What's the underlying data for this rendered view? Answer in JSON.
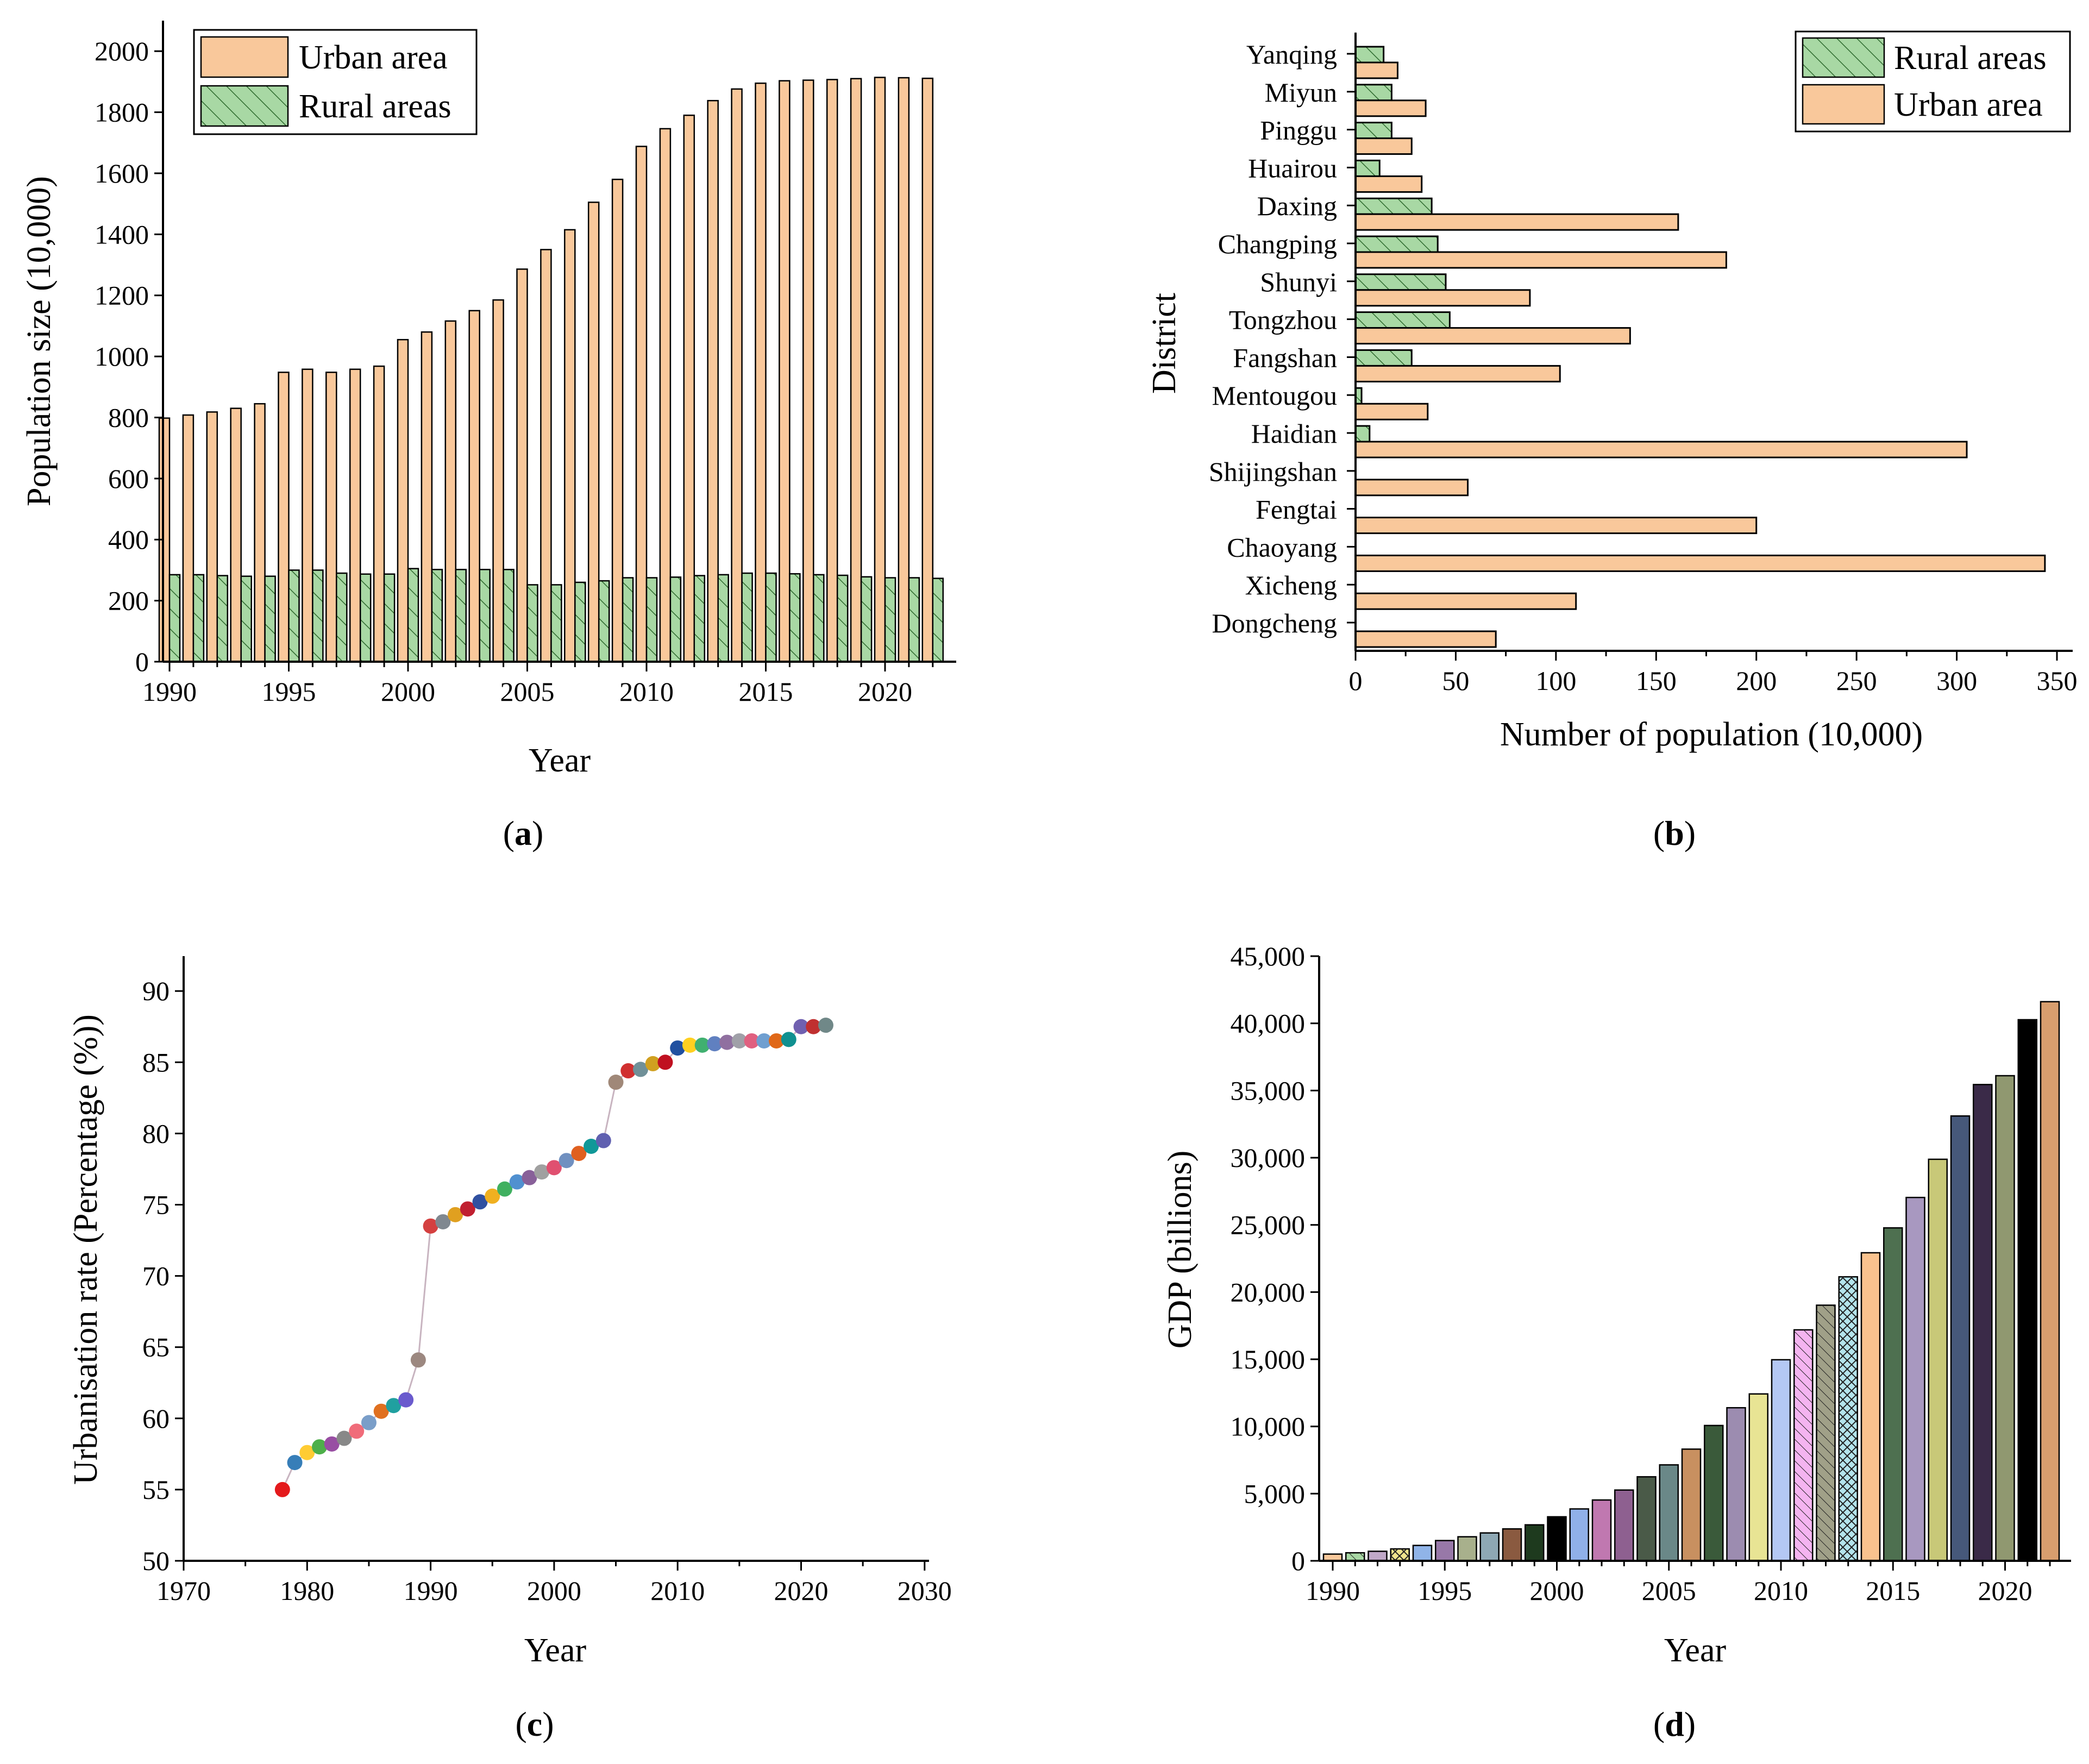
{
  "colors": {
    "urban": "#f9c89b",
    "rural": "#a8d8a4",
    "rural_hatch": "#2f6b2f",
    "line": "#c8b4c0"
  },
  "captions": {
    "a": "a",
    "b": "b",
    "c": "c",
    "d": "d"
  },
  "chart_data": [
    {
      "id": "a",
      "type": "bar",
      "title": "",
      "xlabel": "Year",
      "ylabel": "Population size (10,000)",
      "x": [
        1990,
        1991,
        1992,
        1993,
        1994,
        1995,
        1996,
        1997,
        1998,
        1999,
        2000,
        2001,
        2002,
        2003,
        2004,
        2005,
        2006,
        2007,
        2008,
        2009,
        2010,
        2011,
        2012,
        2013,
        2014,
        2015,
        2016,
        2017,
        2018,
        2019,
        2020,
        2021,
        2022
      ],
      "xticks": [
        "1990",
        "1995",
        "2000",
        "2005",
        "2010",
        "2015",
        "2020"
      ],
      "xtick_values": [
        1990,
        1995,
        2000,
        2005,
        2010,
        2015,
        2020
      ],
      "yticks": [
        "0",
        "200",
        "400",
        "600",
        "800",
        "1000",
        "1200",
        "1400",
        "1600",
        "1800",
        "2000"
      ],
      "ylim": [
        0,
        2100
      ],
      "legend": [
        "Urban area",
        "Rural areas"
      ],
      "legend_position": "top-left",
      "series": [
        {
          "name": "Urban area",
          "values": [
            798,
            808,
            818,
            830,
            845,
            948,
            958,
            948,
            958,
            968,
            1055,
            1080,
            1116,
            1150,
            1185,
            1286,
            1350,
            1415,
            1505,
            1580,
            1688,
            1746,
            1790,
            1838,
            1876,
            1895,
            1903,
            1905,
            1907,
            1910,
            1914,
            1913,
            1911
          ]
        },
        {
          "name": "Rural areas",
          "values": [
            285,
            285,
            282,
            280,
            280,
            300,
            300,
            290,
            287,
            287,
            305,
            302,
            302,
            302,
            302,
            252,
            252,
            260,
            265,
            275,
            275,
            277,
            282,
            285,
            290,
            290,
            288,
            285,
            283,
            278,
            275,
            275,
            273
          ]
        }
      ]
    },
    {
      "id": "b",
      "type": "bar",
      "orientation": "horizontal",
      "xlabel": "Number of population (10,000)",
      "ylabel": "District",
      "categories": [
        "Dongcheng",
        "Xicheng",
        "Chaoyang",
        "Fengtai",
        "Shijingshan",
        "Haidian",
        "Mentougou",
        "Fangshan",
        "Tongzhou",
        "Shunyi",
        "Changping",
        "Daxing",
        "Huairou",
        "Pinggu",
        "Miyun",
        "Yanqing"
      ],
      "xticks": [
        "0",
        "50",
        "100",
        "150",
        "200",
        "250",
        "300",
        "350"
      ],
      "xlim": [
        0,
        360
      ],
      "legend": [
        "Rural areas",
        "Urban area"
      ],
      "legend_position": "top-right",
      "series": [
        {
          "name": "Rural areas",
          "values": [
            0,
            0,
            0,
            0,
            0,
            7,
            3,
            28,
            47,
            45,
            41,
            38,
            12,
            18,
            18,
            14
          ]
        },
        {
          "name": "Urban area",
          "values": [
            70,
            110,
            344,
            200,
            56,
            305,
            36,
            102,
            137,
            87,
            185,
            161,
            33,
            28,
            35,
            21
          ]
        }
      ]
    },
    {
      "id": "c",
      "type": "scatter",
      "xlabel": "Year",
      "ylabel": "Urbanisation rate (Percentage (%))",
      "xlim": [
        1970,
        2030
      ],
      "ylim": [
        50,
        92.5
      ],
      "xticks": [
        "1970",
        "1980",
        "1990",
        "2000",
        "2010",
        "2020",
        "2030"
      ],
      "yticks": [
        "50",
        "55",
        "60",
        "65",
        "70",
        "75",
        "80",
        "85",
        "90"
      ],
      "x": [
        1978,
        1979,
        1980,
        1981,
        1982,
        1983,
        1984,
        1985,
        1986,
        1987,
        1988,
        1989,
        1990,
        1991,
        1992,
        1993,
        1994,
        1995,
        1996,
        1997,
        1998,
        1999,
        2000,
        2001,
        2002,
        2003,
        2004,
        2005,
        2006,
        2007,
        2008,
        2009,
        2010,
        2011,
        2012,
        2013,
        2014,
        2015,
        2016,
        2017,
        2018,
        2019,
        2020,
        2021,
        2022
      ],
      "values": [
        55.0,
        56.9,
        57.6,
        58.0,
        58.2,
        58.6,
        59.1,
        59.7,
        60.5,
        60.9,
        61.3,
        64.1,
        73.5,
        73.8,
        74.3,
        74.7,
        75.2,
        75.6,
        76.1,
        76.6,
        76.9,
        77.3,
        77.6,
        78.1,
        78.6,
        79.1,
        79.5,
        83.6,
        84.4,
        84.5,
        84.9,
        85.0,
        86.0,
        86.2,
        86.2,
        86.3,
        86.4,
        86.5,
        86.5,
        86.5,
        86.5,
        86.6,
        87.5,
        87.5,
        87.6
      ],
      "marker_colors": [
        "#e41a1c",
        "#377eb8",
        "#ffcc33",
        "#4daf4a",
        "#984ea3",
        "#888888",
        "#f06c7a",
        "#7a9ec9",
        "#e07020",
        "#20a0a0",
        "#6a5acd",
        "#9c8880",
        "#d44040",
        "#808890",
        "#e0a020",
        "#c02030",
        "#3050a0",
        "#f0b020",
        "#40b060",
        "#5090d0",
        "#886099",
        "#a0a0a0",
        "#e05070",
        "#7090c0",
        "#e06020",
        "#109898",
        "#6060b0",
        "#a08878",
        "#d03030",
        "#709098",
        "#d0a020",
        "#c01020",
        "#2050a0",
        "#ffd020",
        "#40b070",
        "#6080c0",
        "#9070a0",
        "#a0a0a8",
        "#e06080",
        "#6f9fd0",
        "#e06818",
        "#109090",
        "#7060b0",
        "#c03030",
        "#708888",
        "#c09010"
      ]
    },
    {
      "id": "d",
      "type": "bar",
      "xlabel": "Year",
      "ylabel": "GDP (billions)",
      "x": [
        1990,
        1991,
        1992,
        1993,
        1994,
        1995,
        1996,
        1997,
        1998,
        1999,
        2000,
        2001,
        2002,
        2003,
        2004,
        2005,
        2006,
        2007,
        2008,
        2009,
        2010,
        2011,
        2012,
        2013,
        2014,
        2015,
        2016,
        2017,
        2018,
        2019,
        2020,
        2021,
        2022
      ],
      "xticks": [
        "1990",
        "1995",
        "2000",
        "2005",
        "2010",
        "2015",
        "2020"
      ],
      "xtick_values": [
        1990,
        1995,
        2000,
        2005,
        2010,
        2015,
        2020
      ],
      "yticks": [
        "0",
        "5,000",
        "10,000",
        "15,000",
        "20,000",
        "25,000",
        "30,000",
        "35,000",
        "40,000",
        "45,000"
      ],
      "ylim": [
        0,
        45000
      ],
      "values": [
        500,
        598,
        709,
        887,
        1145,
        1508,
        1789,
        2075,
        2376,
        2678,
        3277,
        3862,
        4526,
        5267,
        6253,
        7141,
        8312,
        10071,
        11392,
        12419,
        14964,
        17189,
        19024,
        21135,
        22926,
        24779,
        27041,
        29883,
        33106,
        35445,
        36103,
        40270,
        41611
      ],
      "bar_colors": [
        "#f9c89b",
        "#a8d8a4",
        "#c0a8c8",
        "#f0e48c",
        "#90b4e8",
        "#9878a8",
        "#a8b08c",
        "#8ea8b4",
        "#8a5a40",
        "#1e3a1e",
        "#000000",
        "#90b0e8",
        "#c078b0",
        "#8e6090",
        "#4a5a48",
        "#6a8888",
        "#c89060",
        "#3a5a3a",
        "#9c8cb0",
        "#e8e494",
        "#b4c8f4",
        "#f4b4f0",
        "#a0a088",
        "#b4e4ec",
        "#f9c28e",
        "#4e7050",
        "#a898c0",
        "#c8c878",
        "#46587a",
        "#3a2a48",
        "#909870",
        "#000000",
        "#d89e6e"
      ],
      "hatches": [
        "none",
        "diag",
        "none",
        "cross",
        "none",
        "none",
        "none",
        "none",
        "none",
        "none",
        "none",
        "none",
        "none",
        "none",
        "none",
        "none",
        "none",
        "none",
        "none",
        "none",
        "none",
        "diag",
        "diag",
        "cross",
        "none",
        "none",
        "none",
        "none",
        "none",
        "none",
        "none",
        "none",
        "none"
      ]
    }
  ]
}
